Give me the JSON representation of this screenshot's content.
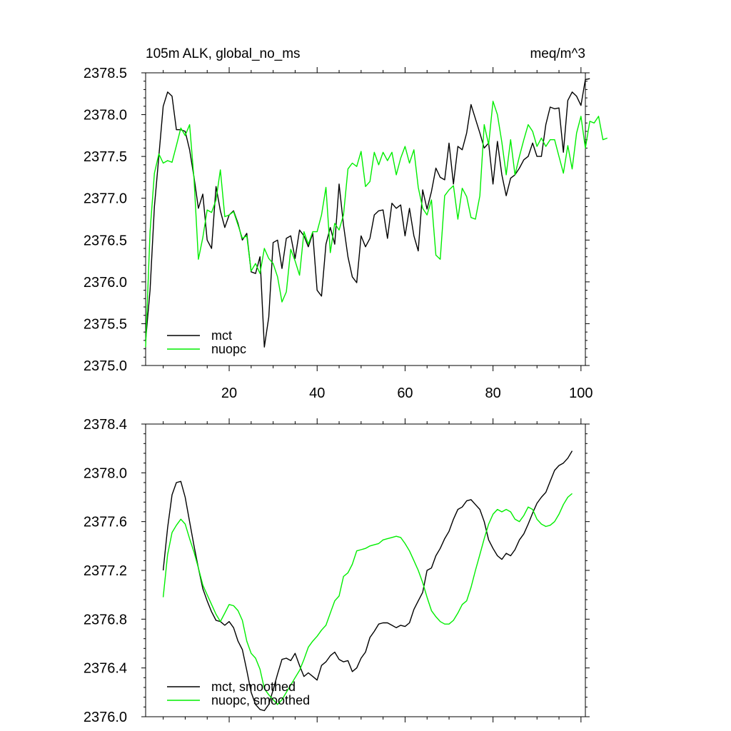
{
  "chart_data": [
    {
      "type": "line",
      "title_left": "105m ALK, global_no_ms",
      "title_right": "meq/m^3",
      "xlim": [
        1,
        101
      ],
      "ylim": [
        2375.0,
        2378.5
      ],
      "xticks": [
        20,
        40,
        60,
        80,
        100
      ],
      "yticks": [
        "2375.0",
        "2375.5",
        "2376.0",
        "2376.5",
        "2377.0",
        "2377.5",
        "2378.0",
        "2378.5"
      ],
      "legend_position": "bottom-left",
      "grid": false,
      "series": [
        {
          "name": "mct",
          "color": "#000000",
          "x_start": 1,
          "values": [
            2375.3,
            2375.9,
            2376.9,
            2377.5,
            2378.1,
            2378.27,
            2378.22,
            2377.82,
            2377.82,
            2377.8,
            2377.58,
            2377.25,
            2376.88,
            2377.05,
            2376.5,
            2376.4,
            2377.14,
            2376.85,
            2376.65,
            2376.8,
            2376.85,
            2376.7,
            2376.5,
            2376.58,
            2376.12,
            2376.1,
            2376.3,
            2375.22,
            2375.58,
            2376.47,
            2376.5,
            2376.16,
            2376.52,
            2376.55,
            2376.28,
            2376.62,
            2376.55,
            2376.42,
            2376.58,
            2375.9,
            2375.83,
            2376.45,
            2376.65,
            2376.45,
            2377.17,
            2376.68,
            2376.3,
            2376.06,
            2375.99,
            2376.55,
            2376.42,
            2376.52,
            2376.8,
            2376.85,
            2376.86,
            2376.52,
            2376.94,
            2376.88,
            2376.92,
            2376.55,
            2376.88,
            2376.55,
            2376.37,
            2377.1,
            2376.87,
            2377.08,
            2377.36,
            2377.25,
            2377.22,
            2377.66,
            2377.17,
            2377.62,
            2377.58,
            2377.78,
            2378.12,
            2377.95,
            2377.78,
            2377.6,
            2377.66,
            2377.17,
            2377.68,
            2377.28,
            2377.03,
            2377.24,
            2377.28,
            2377.36,
            2377.46,
            2377.5,
            2377.66,
            2377.5,
            2377.5,
            2377.88,
            2378.09,
            2378.07,
            2378.08,
            2377.55,
            2378.17,
            2378.27,
            2378.22,
            2378.11,
            2378.42,
            2378.43
          ]
        },
        {
          "name": "nuopc",
          "color": "#00ee00",
          "x_start": 1,
          "values": [
            2375.22,
            2376.6,
            2377.3,
            2377.53,
            2377.42,
            2377.45,
            2377.43,
            2377.63,
            2377.84,
            2377.75,
            2377.88,
            2377.23,
            2376.27,
            2376.53,
            2376.86,
            2376.83,
            2376.98,
            2377.34,
            2376.78,
            2376.8,
            2376.84,
            2376.68,
            2376.52,
            2376.55,
            2376.13,
            2376.22,
            2376.1,
            2376.4,
            2376.28,
            2376.22,
            2376.06,
            2375.76,
            2375.88,
            2376.39,
            2376.25,
            2376.08,
            2376.6,
            2376.45,
            2376.6,
            2376.6,
            2376.8,
            2377.13,
            2376.35,
            2376.7,
            2376.62,
            2376.8,
            2377.35,
            2377.42,
            2377.38,
            2377.56,
            2377.14,
            2377.2,
            2377.55,
            2377.4,
            2377.55,
            2377.45,
            2377.55,
            2377.28,
            2377.48,
            2377.62,
            2377.42,
            2377.58,
            2377.13,
            2376.88,
            2376.8,
            2376.98,
            2376.32,
            2376.27,
            2377.03,
            2377.1,
            2377.15,
            2376.75,
            2377.12,
            2377.02,
            2376.77,
            2376.75,
            2377.03,
            2377.88,
            2377.64,
            2378.16,
            2378.0,
            2377.67,
            2377.28,
            2377.7,
            2377.28,
            2377.5,
            2377.7,
            2377.88,
            2377.8,
            2377.62,
            2377.72,
            2377.62,
            2377.7,
            2377.7,
            2377.5,
            2377.3,
            2377.63,
            2377.35,
            2377.78,
            2377.98,
            2377.6,
            2377.92,
            2377.9,
            2377.98,
            2377.7,
            2377.72
          ]
        }
      ]
    },
    {
      "type": "line",
      "xlim": [
        1,
        101
      ],
      "ylim": [
        2376.0,
        2378.4
      ],
      "xticks": [
        20,
        40,
        60,
        80,
        100
      ],
      "yticks": [
        "2376.0",
        "2376.4",
        "2376.8",
        "2377.2",
        "2377.6",
        "2378.0",
        "2378.4"
      ],
      "legend_position": "bottom-left",
      "grid": false,
      "series": [
        {
          "name": "mct, smoothed",
          "color": "#000000",
          "x_start": 5,
          "values": [
            2377.2,
            2377.55,
            2377.82,
            2377.92,
            2377.93,
            2377.8,
            2377.6,
            2377.4,
            2377.22,
            2377.05,
            2376.95,
            2376.86,
            2376.79,
            2376.78,
            2376.75,
            2376.78,
            2376.73,
            2376.62,
            2376.55,
            2376.38,
            2376.2,
            2376.1,
            2376.06,
            2376.05,
            2376.1,
            2376.22,
            2376.35,
            2376.47,
            2376.48,
            2376.46,
            2376.52,
            2376.42,
            2376.33,
            2376.36,
            2376.33,
            2376.3,
            2376.42,
            2376.45,
            2376.5,
            2376.53,
            2376.47,
            2376.45,
            2376.46,
            2376.37,
            2376.4,
            2376.48,
            2376.53,
            2376.65,
            2376.7,
            2376.76,
            2376.77,
            2376.77,
            2376.75,
            2376.73,
            2376.75,
            2376.74,
            2376.77,
            2376.88,
            2376.95,
            2377.02,
            2377.2,
            2377.22,
            2377.32,
            2377.38,
            2377.46,
            2377.52,
            2377.62,
            2377.7,
            2377.72,
            2377.77,
            2377.78,
            2377.74,
            2377.7,
            2377.6,
            2377.45,
            2377.38,
            2377.32,
            2377.29,
            2377.34,
            2377.32,
            2377.37,
            2377.45,
            2377.5,
            2377.58,
            2377.67,
            2377.75,
            2377.8,
            2377.84,
            2377.93,
            2378.02,
            2378.06,
            2378.08,
            2378.12,
            2378.18
          ]
        },
        {
          "name": "nuopc, smoothed",
          "color": "#00ee00",
          "x_start": 5,
          "values": [
            2376.98,
            2377.33,
            2377.51,
            2377.57,
            2377.62,
            2377.58,
            2377.46,
            2377.35,
            2377.22,
            2377.08,
            2377.0,
            2376.92,
            2376.84,
            2376.78,
            2376.85,
            2376.92,
            2376.91,
            2376.87,
            2376.79,
            2376.62,
            2376.52,
            2376.48,
            2376.39,
            2376.23,
            2376.18,
            2376.14,
            2376.1,
            2376.14,
            2376.2,
            2376.26,
            2376.32,
            2376.38,
            2376.47,
            2376.57,
            2376.62,
            2376.66,
            2376.71,
            2376.75,
            2376.85,
            2376.95,
            2376.99,
            2377.15,
            2377.18,
            2377.25,
            2377.36,
            2377.37,
            2377.38,
            2377.4,
            2377.41,
            2377.42,
            2377.45,
            2377.46,
            2377.47,
            2377.48,
            2377.47,
            2377.42,
            2377.36,
            2377.28,
            2377.2,
            2377.1,
            2376.98,
            2376.87,
            2376.82,
            2376.78,
            2376.76,
            2376.76,
            2376.79,
            2376.85,
            2376.92,
            2376.95,
            2377.06,
            2377.2,
            2377.33,
            2377.46,
            2377.58,
            2377.66,
            2377.7,
            2377.68,
            2377.7,
            2377.68,
            2377.62,
            2377.6,
            2377.65,
            2377.72,
            2377.7,
            2377.62,
            2377.58,
            2377.56,
            2377.57,
            2377.6,
            2377.66,
            2377.74,
            2377.8,
            2377.83
          ]
        }
      ]
    }
  ]
}
